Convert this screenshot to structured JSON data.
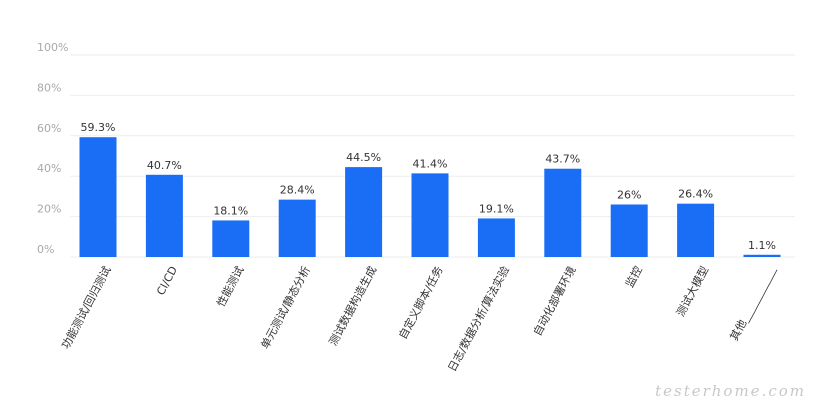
{
  "chart_data": {
    "type": "bar",
    "categories": [
      "功能测试/回归测试",
      "CI/CD",
      "性能测试",
      "单元测试/静态分析",
      "测试数据构造生成",
      "自定义脚本/任务",
      "日志/数据分析/算法实验",
      "自动化部署环境",
      "监控",
      "测试大模型",
      "其他___________"
    ],
    "values": [
      59.3,
      40.7,
      18.1,
      28.4,
      44.5,
      41.4,
      19.1,
      43.7,
      26,
      26.4,
      1.1
    ],
    "value_labels": [
      "59.3%",
      "40.7%",
      "18.1%",
      "28.4%",
      "44.5%",
      "41.4%",
      "19.1%",
      "43.7%",
      "26%",
      "26.4%",
      "1.1%"
    ],
    "ytick_labels": [
      "0%",
      "20%",
      "40%",
      "60%",
      "80%",
      "100%"
    ],
    "ylim": [
      0,
      100
    ],
    "grid": true,
    "bar_color": "#1a6df5"
  },
  "watermark": "testerhome.com"
}
